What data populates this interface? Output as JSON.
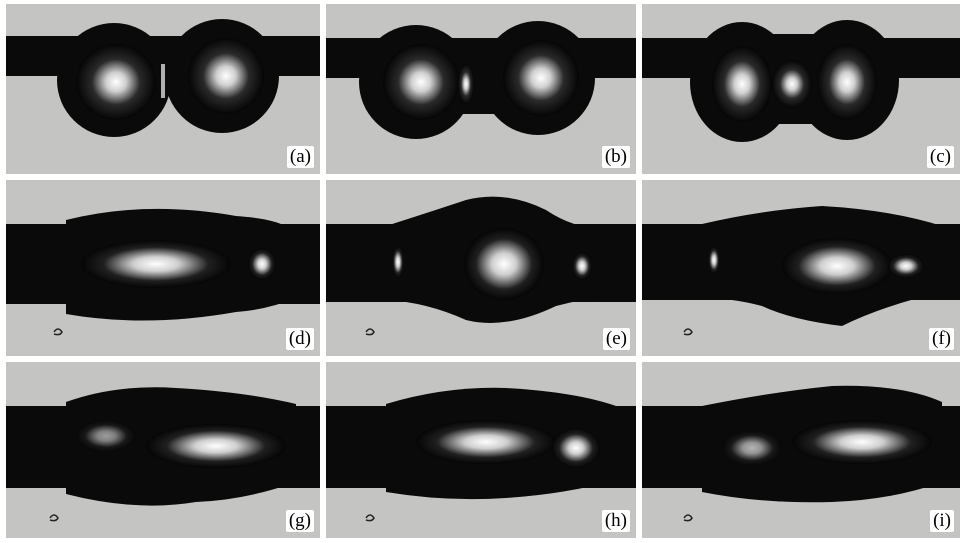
{
  "figure": {
    "background": "#ffffff",
    "panel_background": "#c4c4c2",
    "droplet_color": "#0a0a0a",
    "highlight_color": "#ffffff",
    "panels": [
      {
        "id": "a",
        "label": "(a)",
        "depicts": "two-droplets-touching"
      },
      {
        "id": "b",
        "label": "(b)",
        "depicts": "droplets-with-thin-bridge"
      },
      {
        "id": "c",
        "label": "(c)",
        "depicts": "droplets-with-wide-bridge"
      },
      {
        "id": "d",
        "label": "(d)",
        "depicts": "merged-droplet-elongated"
      },
      {
        "id": "e",
        "label": "(e)",
        "depicts": "merged-droplet-oscillating"
      },
      {
        "id": "f",
        "label": "(f)",
        "depicts": "merged-droplet-oscillating"
      },
      {
        "id": "g",
        "label": "(g)",
        "depicts": "merged-droplet-relaxing"
      },
      {
        "id": "h",
        "label": "(h)",
        "depicts": "merged-droplet-relaxing"
      },
      {
        "id": "i",
        "label": "(i)",
        "depicts": "merged-droplet-relaxing"
      }
    ]
  }
}
